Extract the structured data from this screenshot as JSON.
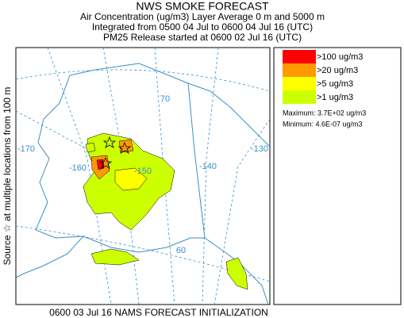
{
  "header": {
    "title": "NWS SMOKE FORECAST",
    "lines": [
      "Air Concentration (ug/m3) Layer Average    0 m and  5000 m",
      "Integrated from 0500 04 Jul to 0600 04 Jul 16 (UTC)",
      "PM25 Release started at 0600 02 Jul 16 (UTC)"
    ]
  },
  "side_label": "Source ☆ at multiple locations  from  100 m",
  "footer": "0600 03 Jul 16 NAMS FORECAST INITIALIZATION",
  "legend": {
    "items": [
      {
        "label": ">100 ug/m3",
        "color": "#ff0000"
      },
      {
        "label": ">20 ug/m3",
        "color": "#ff9900"
      },
      {
        "label": ">5 ug/m3",
        "color": "#ffff00"
      },
      {
        "label": ">1 ug/m3",
        "color": "#ccff00"
      }
    ],
    "maximum": "Maximum: 3.7E+02 ug/m3",
    "minimum": "Minimum: 4.6E-07 ug/m3"
  },
  "map": {
    "labels": [
      "70",
      "-170",
      "-160",
      "-150",
      "-140",
      "-130",
      "60"
    ]
  }
}
